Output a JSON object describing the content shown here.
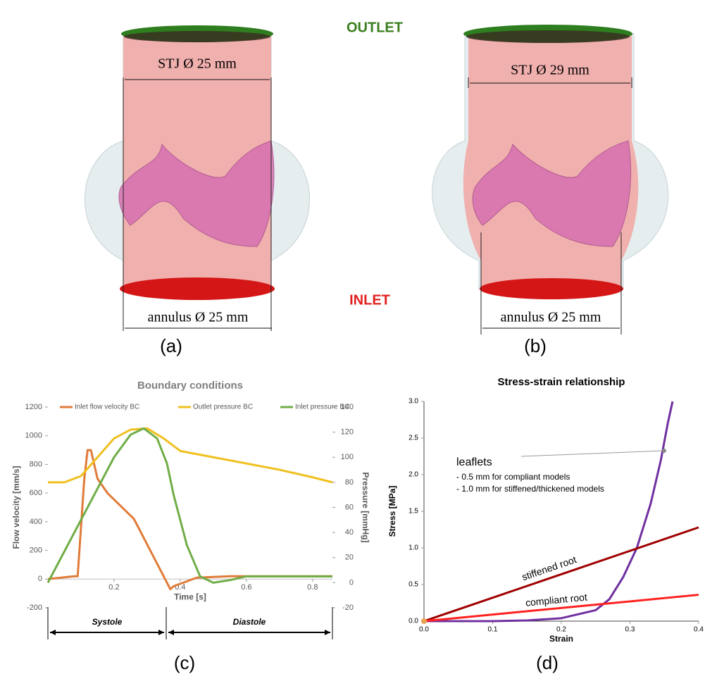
{
  "panels": {
    "outlet": "OUTLET",
    "inlet": "INLET",
    "a": {
      "stj": "STJ Ø 25 mm",
      "annulus": "annulus Ø 25 mm",
      "caption": "(a)"
    },
    "b": {
      "stj": "STJ Ø 29 mm",
      "annulus": "annulus Ø 25 mm",
      "caption": "(b)"
    },
    "c": {
      "caption": "(c)"
    },
    "d": {
      "caption": "(d)"
    }
  },
  "chart_data": [
    {
      "type": "line",
      "title": "Boundary conditions",
      "x_label": "Time [s]",
      "y_label": "Flow velocity [mm/s]",
      "y2_label": "Pressure [mmHg]",
      "xlim": [
        0,
        0.86
      ],
      "xticks": [
        0.2,
        0.4,
        0.6,
        0.8
      ],
      "ylim": [
        -200,
        1200
      ],
      "yticks": [
        -200,
        0,
        200,
        400,
        600,
        800,
        1000,
        1200
      ],
      "y2lim": [
        -20,
        140
      ],
      "y2ticks": [
        -20,
        0,
        20,
        40,
        60,
        80,
        100,
        120,
        140
      ],
      "legend": "top",
      "grid": false,
      "annotations": [
        "Systole",
        "Diastole"
      ],
      "series": [
        {
          "name": "Inlet flow velocity BC",
          "color": "#e07b39",
          "x": [
            0,
            0.08,
            0.09,
            0.11,
            0.12,
            0.13,
            0.15,
            0.18,
            0.26,
            0.37,
            0.38,
            0.45,
            0.55,
            0.7,
            0.86
          ],
          "values": [
            0,
            20,
            20,
            700,
            900,
            900,
            700,
            600,
            420,
            -70,
            -50,
            10,
            20,
            20,
            20
          ]
        },
        {
          "name": "Outlet pressure BC",
          "color": "#f0c020",
          "axis": "y2",
          "x": [
            0,
            0.05,
            0.1,
            0.15,
            0.2,
            0.25,
            0.3,
            0.35,
            0.4,
            0.5,
            0.6,
            0.7,
            0.8,
            0.86
          ],
          "values": [
            80,
            80,
            85,
            100,
            115,
            122,
            123,
            115,
            105,
            100,
            95,
            90,
            84,
            80
          ]
        },
        {
          "name": "Inlet pressure BC",
          "color": "#70ad47",
          "axis": "y2",
          "x": [
            0,
            0.1,
            0.2,
            0.25,
            0.29,
            0.33,
            0.36,
            0.38,
            0.42,
            0.46,
            0.5,
            0.55,
            0.6,
            0.86
          ],
          "values": [
            0,
            50,
            100,
            118,
            123,
            115,
            95,
            70,
            30,
            5,
            0,
            2,
            5,
            5
          ]
        }
      ]
    },
    {
      "type": "line",
      "title": "Stress-strain relationship",
      "x_label": "Strain",
      "y_label": "Stress [MPa]",
      "xlim": [
        0,
        0.4
      ],
      "xticks": [
        {
          "value": 0,
          "label": "0.0"
        },
        0.1,
        0.2,
        0.3,
        0.4
      ],
      "ylim": [
        0,
        3
      ],
      "yticks": [
        {
          "value": 0,
          "label": "0.0"
        },
        0.5,
        {
          "value": 1,
          "label": "1.0"
        },
        1.5,
        {
          "value": 2,
          "label": "2.0"
        },
        2.5,
        {
          "value": 3,
          "label": "3.0"
        }
      ],
      "legend": false,
      "grid": false,
      "annotations": [
        "- 0.5 mm for compliant models",
        "- 1.0 mm for stiffened/thickened models"
      ],
      "series": [
        {
          "name": "leaflets",
          "color": "#7030a0",
          "x": [
            0,
            0.1,
            0.15,
            0.2,
            0.25,
            0.27,
            0.29,
            0.31,
            0.33,
            0.345,
            0.355,
            0.362
          ],
          "values": [
            0,
            0,
            0.01,
            0.04,
            0.15,
            0.3,
            0.6,
            1.0,
            1.6,
            2.2,
            2.7,
            3.0
          ]
        },
        {
          "name": "stiffened root",
          "color": "#a00000",
          "x": [
            0,
            0.4
          ],
          "values": [
            0,
            1.28
          ]
        },
        {
          "name": "compliant root",
          "color": "#ff2020",
          "x": [
            0,
            0.4
          ],
          "values": [
            0,
            0.36
          ]
        }
      ]
    }
  ]
}
